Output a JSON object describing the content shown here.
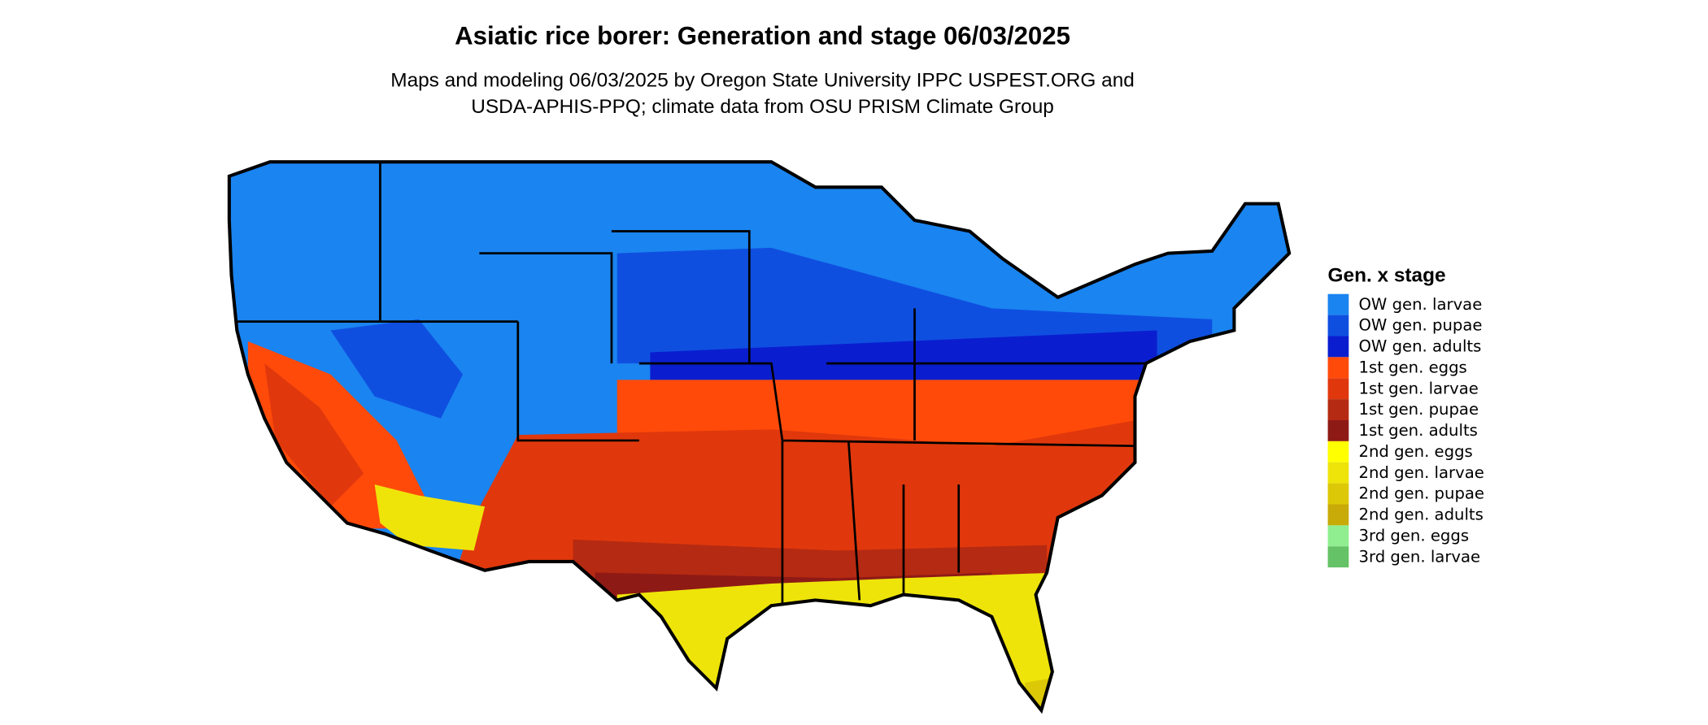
{
  "header": {
    "title": "Asiatic rice borer: Generation and stage 06/03/2025",
    "subtitle": [
      "Maps and modeling 06/03/2025 by Oregon State University IPPC USPEST.ORG and",
      "USDA-APHIS-PPQ; climate data from OSU PRISM Climate Group"
    ]
  },
  "legend": {
    "title": "Gen. x stage",
    "items": [
      {
        "label": "OW gen. larvae",
        "color": "#1a84f0"
      },
      {
        "label": "OW gen. pupae",
        "color": "#0f4fe0"
      },
      {
        "label": "OW gen. adults",
        "color": "#0a1ecf"
      },
      {
        "label": "1st gen. eggs",
        "color": "#ff4a0a"
      },
      {
        "label": "1st gen. larvae",
        "color": "#e0380c"
      },
      {
        "label": "1st gen. pupae",
        "color": "#b52a12"
      },
      {
        "label": "1st gen. adults",
        "color": "#8e1a16"
      },
      {
        "label": "2nd gen. eggs",
        "color": "#ffff00"
      },
      {
        "label": "2nd gen. larvae",
        "color": "#eee40a"
      },
      {
        "label": "2nd gen. pupae",
        "color": "#dcc806"
      },
      {
        "label": "2nd gen. adults",
        "color": "#c8aa08"
      },
      {
        "label": "3rd gen. eggs",
        "color": "#90ee90"
      },
      {
        "label": "3rd gen. larvae",
        "color": "#66c266"
      }
    ]
  }
}
